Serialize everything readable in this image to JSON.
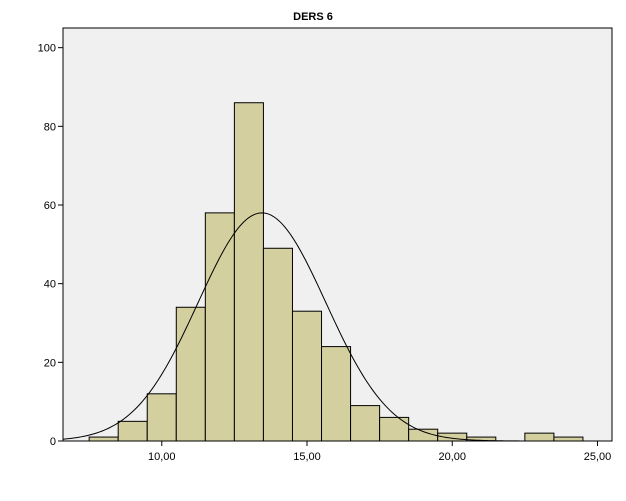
{
  "chart_data": {
    "type": "bar",
    "title": "DERS 6",
    "xlabel": "",
    "ylabel": "",
    "bin_width": 1.0,
    "bins": [
      {
        "start": 7.5,
        "end": 8.5,
        "count": 1
      },
      {
        "start": 8.5,
        "end": 9.5,
        "count": 5
      },
      {
        "start": 9.5,
        "end": 10.5,
        "count": 12
      },
      {
        "start": 10.5,
        "end": 11.5,
        "count": 34
      },
      {
        "start": 11.5,
        "end": 12.5,
        "count": 58
      },
      {
        "start": 12.5,
        "end": 13.5,
        "count": 86
      },
      {
        "start": 13.5,
        "end": 14.5,
        "count": 49
      },
      {
        "start": 14.5,
        "end": 15.5,
        "count": 33
      },
      {
        "start": 15.5,
        "end": 16.5,
        "count": 24
      },
      {
        "start": 16.5,
        "end": 17.5,
        "count": 9
      },
      {
        "start": 17.5,
        "end": 18.5,
        "count": 6
      },
      {
        "start": 18.5,
        "end": 19.5,
        "count": 3
      },
      {
        "start": 19.5,
        "end": 20.5,
        "count": 2
      },
      {
        "start": 20.5,
        "end": 21.5,
        "count": 1
      },
      {
        "start": 22.5,
        "end": 23.5,
        "count": 2
      },
      {
        "start": 23.5,
        "end": 24.5,
        "count": 1
      }
    ],
    "normal_curve": {
      "mean": 13.45,
      "sd": 2.2,
      "peak": 58
    },
    "xlim": [
      6.6,
      25.5
    ],
    "ylim": [
      0,
      105
    ],
    "x_ticks": [
      {
        "value": 10,
        "label": "10,00"
      },
      {
        "value": 15,
        "label": "15,00"
      },
      {
        "value": 20,
        "label": "20,00"
      },
      {
        "value": 25,
        "label": "25,00"
      }
    ],
    "y_ticks": [
      {
        "value": 0,
        "label": "0"
      },
      {
        "value": 20,
        "label": "20"
      },
      {
        "value": 40,
        "label": "40"
      },
      {
        "value": 60,
        "label": "60"
      },
      {
        "value": 80,
        "label": "80"
      },
      {
        "value": 100,
        "label": "100"
      }
    ],
    "colors": {
      "plot_background": "#f0f0f0",
      "bar_fill": "#d4cf9f",
      "bar_stroke": "#000000",
      "curve": "#000000"
    }
  }
}
